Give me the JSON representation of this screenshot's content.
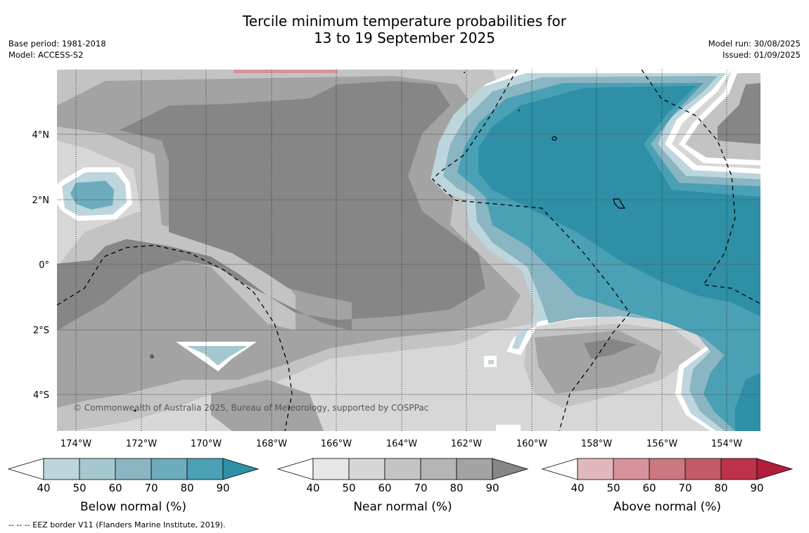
{
  "title": {
    "line1": "Tercile minimum temperature probabilities for",
    "line2": "13 to 19 September 2025"
  },
  "meta_left": [
    "Base period: 1981-2018",
    "Model: ACCESS-S2"
  ],
  "meta_right": [
    "Model run: 30/08/2025",
    "Issued: 01/09/2025"
  ],
  "map": {
    "lon_labels": [
      "174°W",
      "172°W",
      "170°W",
      "168°W",
      "166°W",
      "164°W",
      "162°W",
      "160°W",
      "158°W",
      "156°W",
      "154°W"
    ],
    "lat_labels": [
      "4°N",
      "2°N",
      "0°",
      "2°S",
      "4°S"
    ],
    "copyright": "© Commonwealth of Australia 2025, Bureau of Meteorology, supported by COSPPac"
  },
  "colorbars": [
    {
      "title": "Below normal (%)",
      "ticks": [
        "40",
        "50",
        "60",
        "70",
        "80",
        "90"
      ],
      "colors": [
        "#bdd5dc",
        "#a5c8ce",
        "#8ab5c2",
        "#6cacbd",
        "#4aa0b4",
        "#2e8fa6"
      ]
    },
    {
      "title": "Near normal (%)",
      "ticks": [
        "40",
        "50",
        "60",
        "70",
        "80",
        "90"
      ],
      "colors": [
        "#e7e7e7",
        "#d6d6d6",
        "#c5c5c5",
        "#b5b5b5",
        "#a3a3a3",
        "#868686"
      ]
    },
    {
      "title": "Above normal (%)",
      "ticks": [
        "40",
        "50",
        "60",
        "70",
        "80",
        "90"
      ],
      "colors": [
        "#e2b8bf",
        "#d6939c",
        "#cb7880",
        "#c25b66",
        "#bd3249",
        "#b41c3c"
      ]
    }
  ],
  "footnote": "--  --  -- EEZ border V11 (Flanders Marine Institute, 2019)."
}
